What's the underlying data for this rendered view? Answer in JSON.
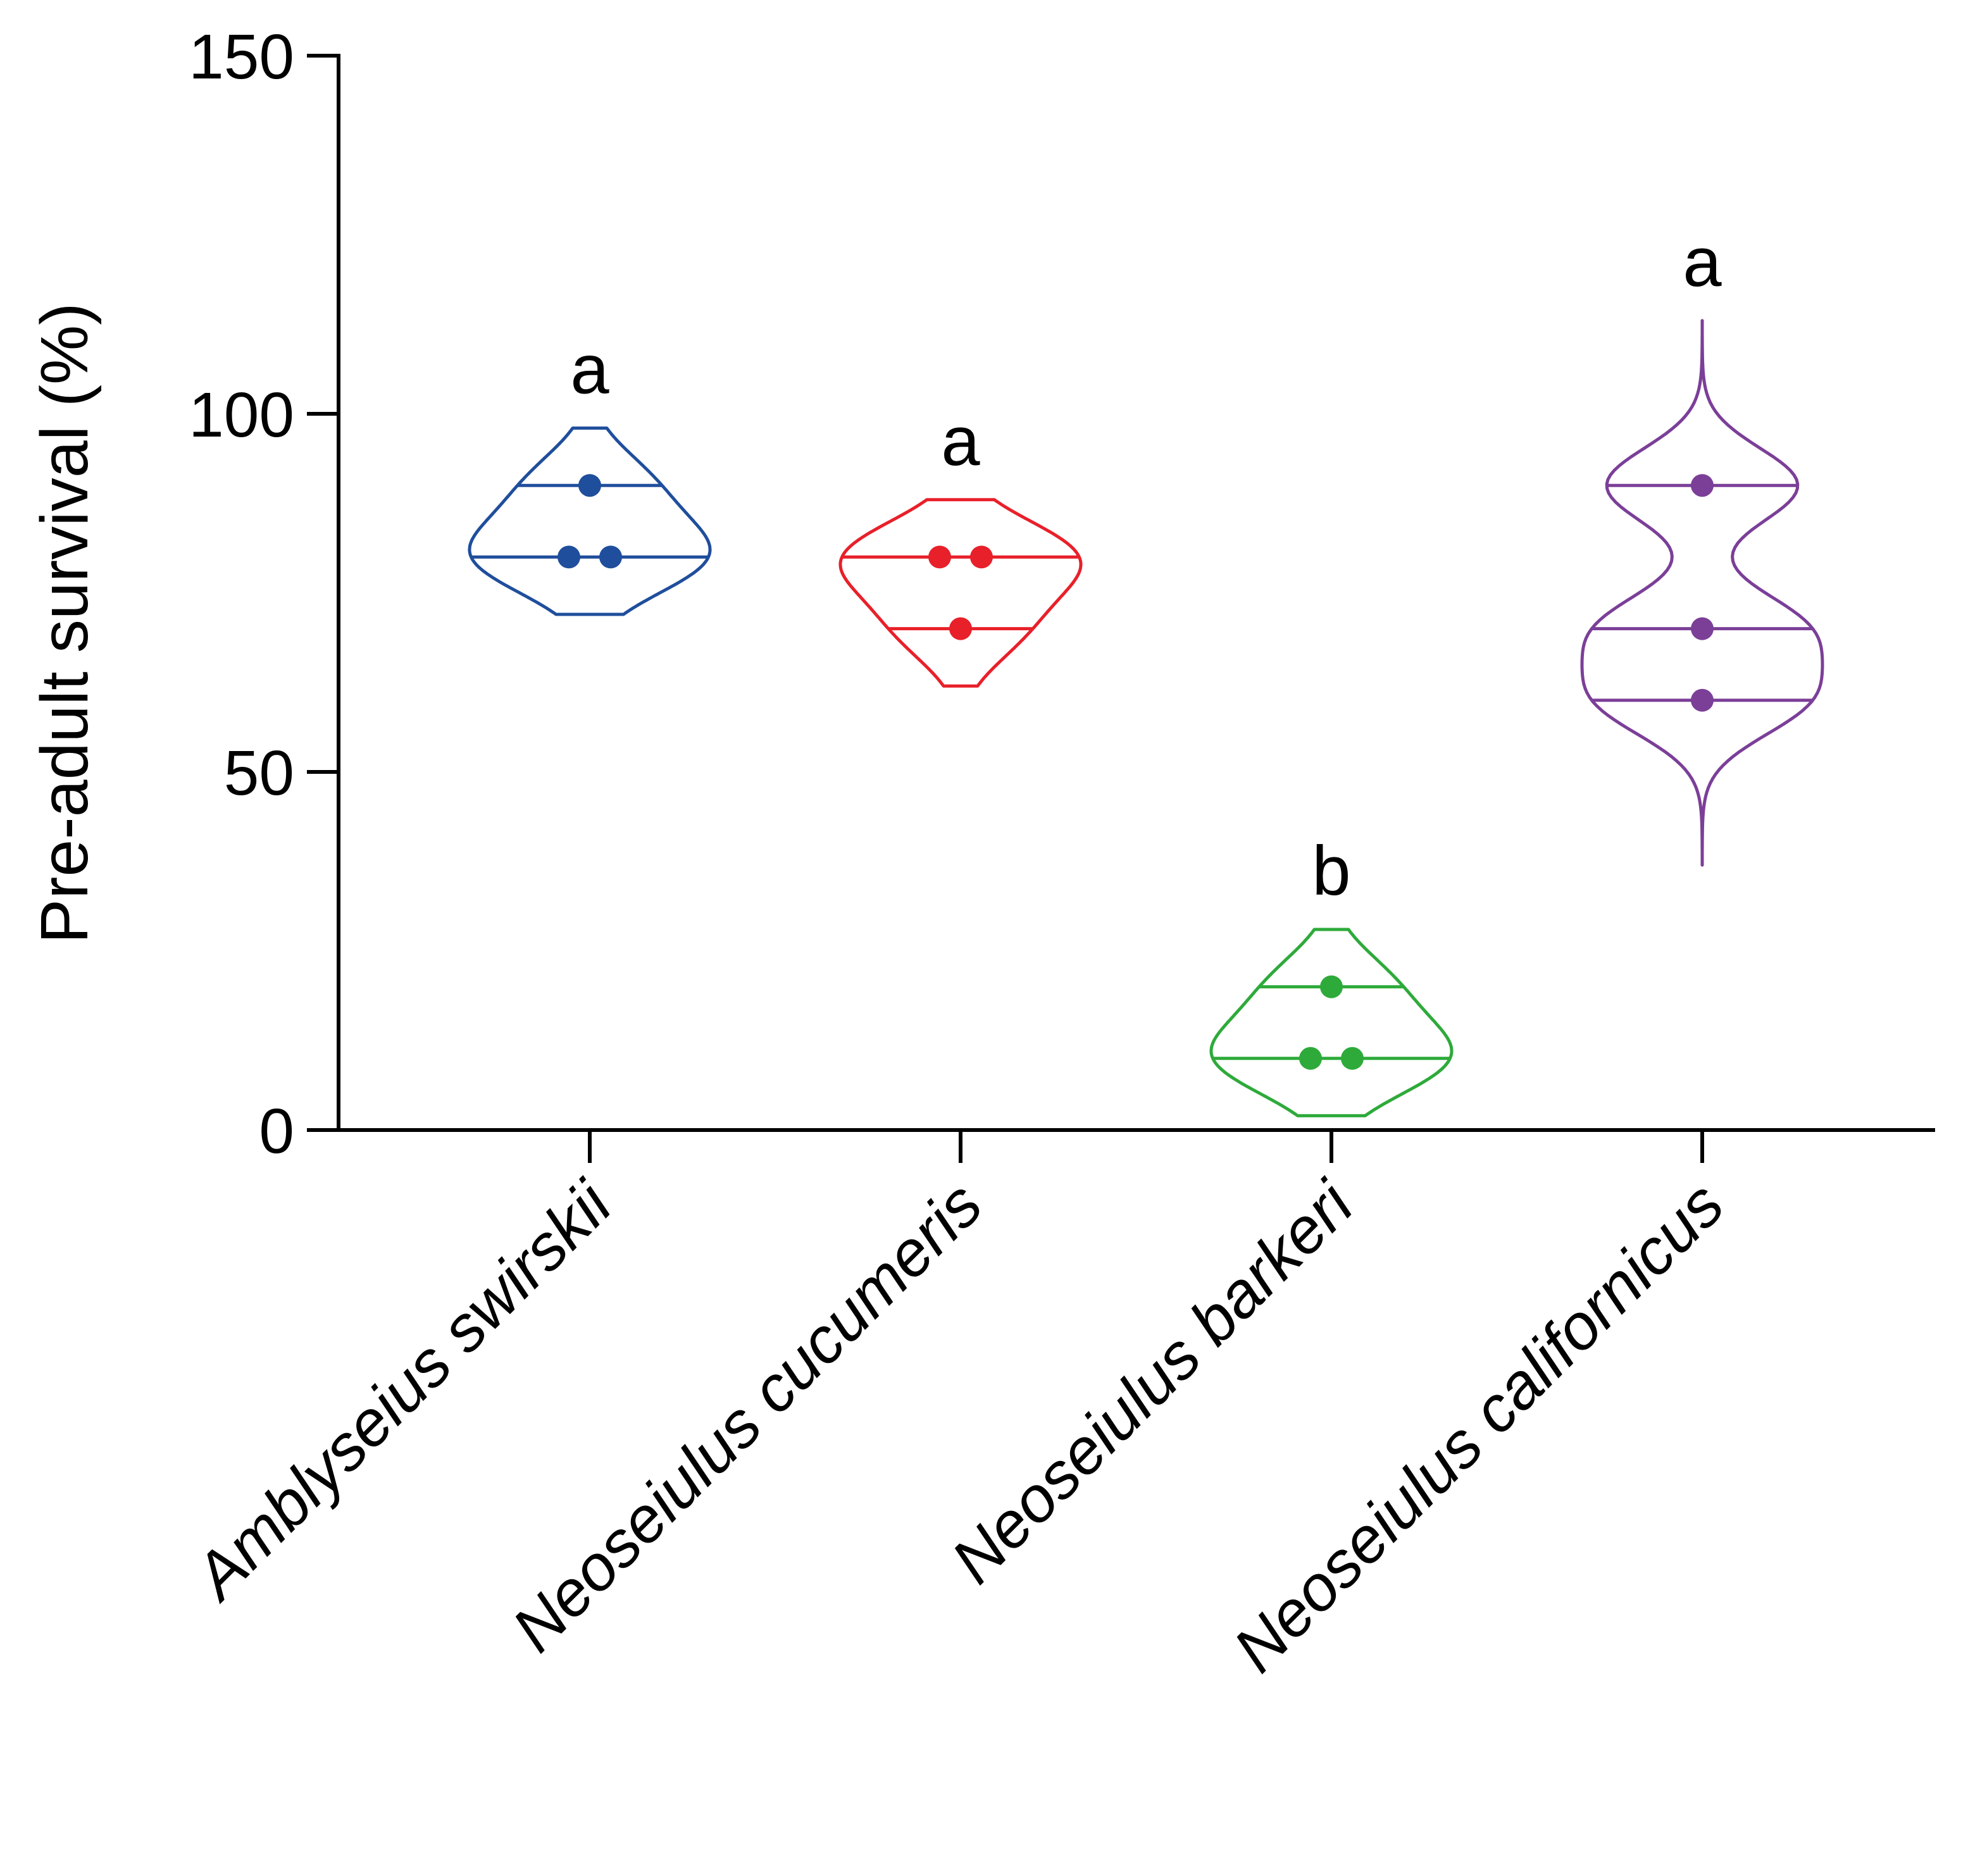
{
  "chart_data": {
    "type": "violin",
    "title": "",
    "xlabel": "",
    "ylabel": "Pre-adult survival (%)",
    "ylim": [
      0,
      150
    ],
    "yticks": [
      0,
      50,
      100,
      150
    ],
    "grid": false,
    "categories": [
      "Amblyseius swirskii",
      "Neoseiulus cucumeris",
      "Neoseiulus barkeri",
      "Neoseiulus californicus"
    ],
    "series": [
      {
        "name": "Amblyseius swirskii",
        "color": "#1f4e9c",
        "points": [
          90,
          80,
          80
        ],
        "median": 80,
        "quartiles": [
          80,
          90
        ],
        "range": [
          72,
          98
        ],
        "letter": "a"
      },
      {
        "name": "Neoseiulus cucumeris",
        "color": "#e8202a",
        "points": [
          80,
          80,
          70
        ],
        "median": 80,
        "quartiles": [
          70,
          80
        ],
        "range": [
          62,
          88
        ],
        "letter": "a"
      },
      {
        "name": "Neoseiulus barkeri",
        "color": "#2eaa3a",
        "points": [
          20,
          10,
          10
        ],
        "median": 10,
        "quartiles": [
          10,
          20
        ],
        "range": [
          2,
          28
        ],
        "letter": "b"
      },
      {
        "name": "Neoseiulus californicus",
        "color": "#7b3f98",
        "points": [
          90,
          70,
          60
        ],
        "median": 70,
        "quartiles": [
          60,
          90
        ],
        "range": [
          37,
          113
        ],
        "letter": "a"
      }
    ]
  }
}
